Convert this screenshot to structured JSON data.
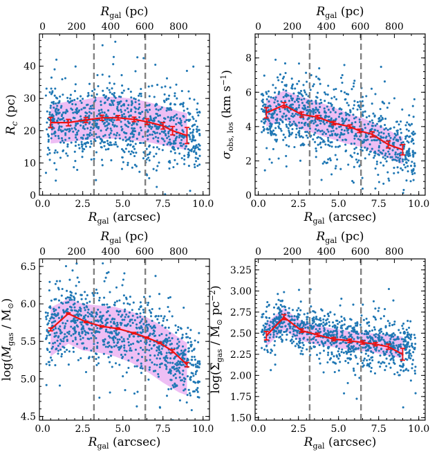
{
  "figure": {
    "colors": {
      "scatter": "#1f77b4",
      "band": "#e8a8f0",
      "median": "#ee1111",
      "marker_line": "#7f7f7f"
    },
    "vertical_markers_arcsec": [
      3.2,
      6.4
    ]
  },
  "chart_data": [
    {
      "id": "rc",
      "type": "scatter",
      "xlabel": "R_gal (arcsec)",
      "ylabel": "R_c (pc)",
      "top_xlabel": "R_gal (pc)",
      "xlim": [
        -0.2,
        10.4
      ],
      "ylim": [
        0,
        50
      ],
      "xticks": [
        0,
        2.5,
        5,
        7.5,
        10
      ],
      "xtick_labels": [
        "0.0",
        "2.5",
        "5.0",
        "7.5",
        "10.0"
      ],
      "yticks": [
        0,
        10,
        20,
        30,
        40
      ],
      "ytick_labels": [
        "0",
        "10",
        "20",
        "30",
        "40"
      ],
      "top_ticks_arcsec": [
        0,
        2.12,
        4.24,
        6.36,
        8.48
      ],
      "top_tick_labels": [
        "0",
        "200",
        "400",
        "600",
        "800"
      ],
      "scatter": {
        "x_range": [
          0.2,
          9.8
        ],
        "center": [
          [
            0,
            21
          ],
          [
            2,
            23
          ],
          [
            4,
            24
          ],
          [
            6,
            22
          ],
          [
            8,
            20
          ],
          [
            10,
            18
          ]
        ],
        "spread": [
          [
            0,
            5.5
          ],
          [
            5,
            6.5
          ],
          [
            10,
            6
          ]
        ],
        "count": 950,
        "seed": 11
      },
      "band": {
        "x": [
          0.5,
          1.5,
          2.5,
          3.5,
          4.5,
          5.5,
          6.5,
          7.5,
          8.5,
          9.0
        ],
        "lower": [
          16,
          16.5,
          17,
          17.5,
          17.5,
          17,
          16.5,
          15.5,
          14.5,
          14
        ],
        "upper": [
          28,
          29,
          29.5,
          30.5,
          30.5,
          30,
          29,
          27.5,
          26,
          25.5
        ]
      },
      "median": {
        "x": [
          0.5,
          1.6,
          2.7,
          3.7,
          4.7,
          5.7,
          6.5,
          7.5,
          8.1,
          9.0
        ],
        "y": [
          22.5,
          22.5,
          23.3,
          24.0,
          24.0,
          23.5,
          22.8,
          21.5,
          20.0,
          18.5
        ],
        "yerr": [
          1.6,
          1.0,
          0.8,
          0.8,
          0.7,
          0.7,
          0.9,
          1.0,
          1.3,
          2.5
        ]
      }
    },
    {
      "id": "sigma",
      "type": "scatter",
      "xlabel": "R_gal (arcsec)",
      "ylabel": "σ_obs,los (km s^-1)",
      "top_xlabel": "R_gal (pc)",
      "xlim": [
        -0.2,
        10.4
      ],
      "ylim": [
        0,
        9.4
      ],
      "xticks": [
        0,
        2.5,
        5,
        7.5,
        10
      ],
      "xtick_labels": [
        "0.0",
        "2.5",
        "5.0",
        "7.5",
        "10.0"
      ],
      "yticks": [
        0,
        2,
        4,
        6,
        8
      ],
      "ytick_labels": [
        "0",
        "2",
        "4",
        "6",
        "8"
      ],
      "top_ticks_arcsec": [
        0,
        2.12,
        4.24,
        6.36,
        8.48
      ],
      "top_tick_labels": [
        "0",
        "200",
        "400",
        "600",
        "800"
      ],
      "scatter": {
        "x_range": [
          0.2,
          9.8
        ],
        "center": [
          [
            0,
            4.6
          ],
          [
            1.6,
            5.0
          ],
          [
            3,
            4.6
          ],
          [
            5,
            4.1
          ],
          [
            7,
            3.5
          ],
          [
            9,
            2.7
          ],
          [
            10,
            2.4
          ]
        ],
        "spread": [
          [
            0,
            0.9
          ],
          [
            5,
            1.1
          ],
          [
            10,
            0.9
          ]
        ],
        "count": 950,
        "seed": 22
      },
      "band": {
        "x": [
          0.5,
          1.6,
          2.5,
          3.5,
          4.5,
          5.5,
          6.5,
          7.5,
          8.5,
          9.0
        ],
        "lower": [
          4.0,
          4.4,
          3.9,
          3.6,
          3.3,
          3.0,
          2.8,
          2.4,
          2.0,
          1.8
        ],
        "upper": [
          5.5,
          6.1,
          5.8,
          5.5,
          5.2,
          4.8,
          4.5,
          4.1,
          3.6,
          3.4
        ]
      },
      "median": {
        "x": [
          0.5,
          1.6,
          2.7,
          3.7,
          4.7,
          5.7,
          6.3,
          7.1,
          8.1,
          9.0
        ],
        "y": [
          4.8,
          5.25,
          4.7,
          4.55,
          4.2,
          4.0,
          3.75,
          3.55,
          2.95,
          2.65
        ],
        "yerr": [
          0.3,
          0.15,
          0.15,
          0.1,
          0.1,
          0.1,
          0.1,
          0.15,
          0.2,
          0.3
        ]
      }
    },
    {
      "id": "mgas",
      "type": "scatter",
      "xlabel": "R_gal (arcsec)",
      "ylabel": "log(M_gas / M_⊙)",
      "top_xlabel": "R_gal (pc)",
      "xlim": [
        -0.2,
        10.4
      ],
      "ylim": [
        4.45,
        6.6
      ],
      "xticks": [
        0,
        2.5,
        5,
        7.5,
        10
      ],
      "xtick_labels": [
        "0.0",
        "2.5",
        "5.0",
        "7.5",
        "10.0"
      ],
      "yticks": [
        4.5,
        5.0,
        5.5,
        6.0,
        6.5
      ],
      "ytick_labels": [
        "4.5",
        "5.0",
        "5.5",
        "6.0",
        "6.5"
      ],
      "top_ticks_arcsec": [
        0,
        2.12,
        4.24,
        6.36,
        8.48
      ],
      "top_tick_labels": [
        "0",
        "200",
        "400",
        "600",
        "800"
      ],
      "scatter": {
        "x_range": [
          0.2,
          9.8
        ],
        "center": [
          [
            0,
            5.65
          ],
          [
            1.6,
            5.82
          ],
          [
            3,
            5.72
          ],
          [
            5,
            5.66
          ],
          [
            7,
            5.5
          ],
          [
            9,
            5.2
          ],
          [
            10,
            5.1
          ]
        ],
        "spread": [
          [
            0,
            0.24
          ],
          [
            5,
            0.26
          ],
          [
            10,
            0.25
          ]
        ],
        "count": 950,
        "seed": 33
      },
      "band": {
        "x": [
          0.5,
          1.6,
          2.5,
          3.5,
          4.5,
          5.5,
          6.5,
          7.5,
          8.5,
          9.0
        ],
        "lower": [
          5.3,
          5.47,
          5.38,
          5.35,
          5.3,
          5.22,
          5.1,
          4.95,
          4.82,
          4.78
        ],
        "upper": [
          5.95,
          6.07,
          6.0,
          5.98,
          5.96,
          5.9,
          5.82,
          5.7,
          5.55,
          5.48
        ]
      },
      "median": {
        "x": [
          0.5,
          1.6,
          2.7,
          3.7,
          4.7,
          5.7,
          6.5,
          7.3,
          8.1,
          9.0
        ],
        "y": [
          5.66,
          5.87,
          5.76,
          5.7,
          5.67,
          5.61,
          5.55,
          5.48,
          5.37,
          5.19
        ],
        "yerr": [
          0.02,
          0.01,
          0.01,
          0.01,
          0.01,
          0.01,
          0.01,
          0.01,
          0.02,
          0.03
        ]
      }
    },
    {
      "id": "sigmagas",
      "type": "scatter",
      "xlabel": "R_gal (arcsec)",
      "ylabel": "log(Σ_gas / M_⊙ pc^-2)",
      "top_xlabel": "R_gal (pc)",
      "xlim": [
        -0.2,
        10.4
      ],
      "ylim": [
        1.47,
        3.38
      ],
      "xticks": [
        0,
        2.5,
        5,
        7.5,
        10
      ],
      "xtick_labels": [
        "0.0",
        "2.5",
        "5.0",
        "7.5",
        "10.0"
      ],
      "yticks": [
        1.5,
        1.75,
        2.0,
        2.25,
        2.5,
        2.75,
        3.0,
        3.25
      ],
      "ytick_labels": [
        "1.50",
        "1.75",
        "2.00",
        "2.25",
        "2.50",
        "2.75",
        "3.00",
        "3.25"
      ],
      "top_ticks_arcsec": [
        0,
        2.12,
        4.24,
        6.36,
        8.48
      ],
      "top_tick_labels": [
        "0",
        "200",
        "400",
        "600",
        "800"
      ],
      "scatter": {
        "x_range": [
          0.2,
          9.8
        ],
        "center": [
          [
            0,
            2.5
          ],
          [
            1.6,
            2.66
          ],
          [
            3,
            2.52
          ],
          [
            5,
            2.44
          ],
          [
            7,
            2.39
          ],
          [
            9,
            2.33
          ],
          [
            10,
            2.3
          ]
        ],
        "spread": [
          [
            0,
            0.13
          ],
          [
            5,
            0.15
          ],
          [
            10,
            0.16
          ]
        ],
        "count": 950,
        "seed": 44
      },
      "band": {
        "x": [
          0.5,
          1.6,
          2.5,
          3.5,
          4.5,
          5.5,
          6.5,
          7.5,
          8.5,
          9.0
        ],
        "lower": [
          2.34,
          2.54,
          2.42,
          2.37,
          2.34,
          2.31,
          2.29,
          2.26,
          2.22,
          2.2
        ],
        "upper": [
          2.62,
          2.8,
          2.66,
          2.6,
          2.56,
          2.53,
          2.51,
          2.49,
          2.47,
          2.46
        ]
      },
      "median": {
        "x": [
          0.5,
          1.6,
          2.7,
          3.7,
          4.7,
          5.7,
          6.5,
          7.3,
          8.1,
          9.0
        ],
        "y": [
          2.47,
          2.69,
          2.53,
          2.48,
          2.43,
          2.41,
          2.39,
          2.37,
          2.34,
          2.25
        ],
        "yerr": [
          0.05,
          0.03,
          0.02,
          0.02,
          0.02,
          0.02,
          0.02,
          0.02,
          0.03,
          0.07
        ]
      }
    }
  ]
}
